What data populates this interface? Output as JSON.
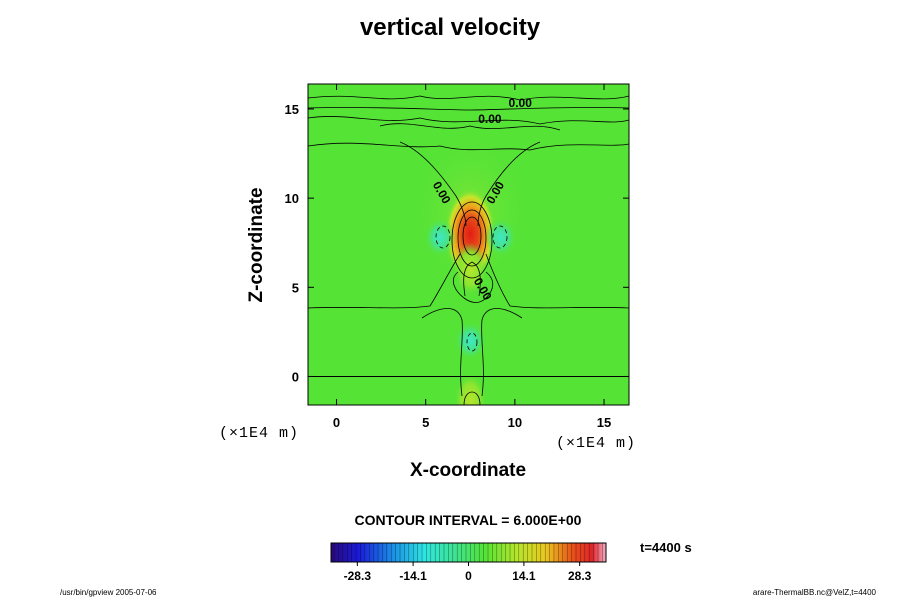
{
  "chart_data": {
    "type": "heatmap",
    "title": "vertical velocity",
    "xlabel": "X-coordinate",
    "ylabel": "Z-coordinate",
    "x_unit": "(×1E4 m)",
    "y_unit": "(×1E4 m)",
    "xlim": [
      -1.6,
      16.4
    ],
    "ylim": [
      -1.6,
      16.4
    ],
    "x_ticks": [
      "0",
      "5",
      "10",
      "15"
    ],
    "x_tick_values": [
      0,
      5,
      10,
      15
    ],
    "y_ticks": [
      "0",
      "5",
      "10",
      "15"
    ],
    "y_tick_values": [
      0,
      5,
      10,
      15
    ],
    "contour_interval": "CONTOUR INTERVAL = 6.000E+00",
    "contour_labels": [
      {
        "text": "0.00",
        "x": 10.3,
        "z": 15.1
      },
      {
        "text": "0.00",
        "x": 8.6,
        "z": 14.2
      },
      {
        "text": "0.00",
        "x": 5.7,
        "z": 10.2
      },
      {
        "text": "0.00",
        "x": 9.1,
        "z": 10.2
      },
      {
        "text": "0.00",
        "x": 8.0,
        "z": 4.8
      }
    ],
    "colorbar": {
      "min": -35.0,
      "max": 35.0,
      "ticks": [
        "-28.3",
        "-14.1",
        "0",
        "14.1",
        "28.3"
      ],
      "tick_values": [
        -28.3,
        -14.1,
        0,
        14.1,
        28.3
      ]
    },
    "features": [
      {
        "kind": "updraft-max",
        "x": 7.5,
        "z": 8.0,
        "value": 30
      },
      {
        "kind": "downdraft",
        "x": 5.8,
        "z": 7.8,
        "value": -12
      },
      {
        "kind": "downdraft",
        "x": 9.2,
        "z": 7.8,
        "value": -12
      },
      {
        "kind": "downdraft",
        "x": 7.5,
        "z": 2.0,
        "value": -10
      },
      {
        "kind": "updraft",
        "x": 7.5,
        "z": 6.0,
        "value": 10
      },
      {
        "kind": "updraft",
        "x": 7.5,
        "z": -1.3,
        "value": 10
      }
    ],
    "grid": false,
    "legend_placement": "bottom"
  },
  "time_label": "t=4400 s",
  "footer_left": "/usr/bin/gpview 2005-07-06",
  "footer_right": "arare-ThermalBB.nc@VelZ,t=4400",
  "colors": {
    "field_background": "#55e336",
    "contour_line": "#000000"
  }
}
